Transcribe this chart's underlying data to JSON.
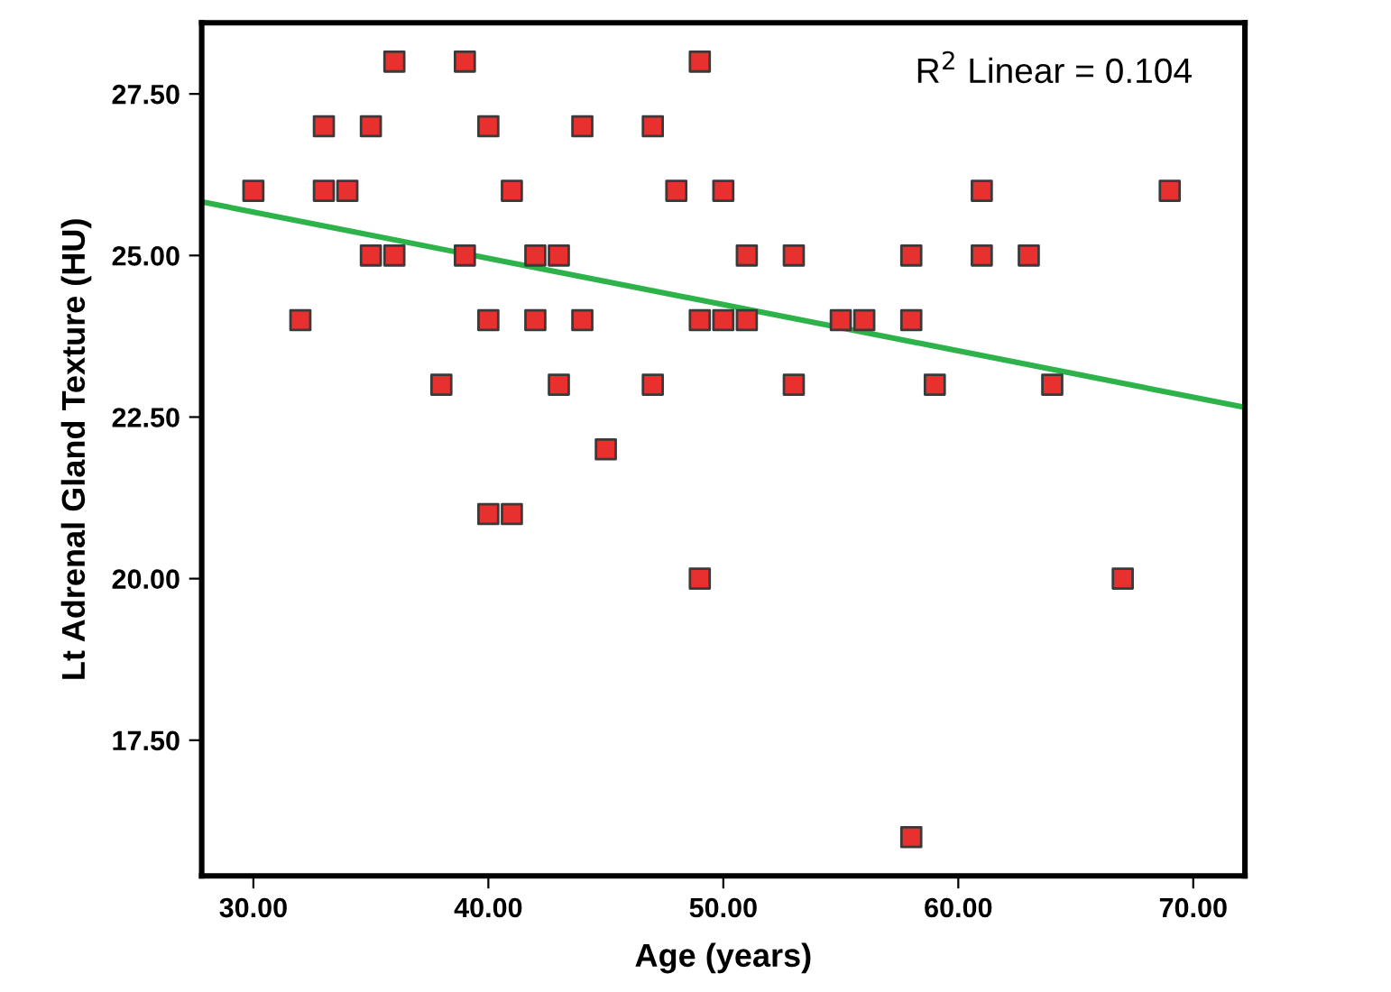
{
  "chart_data": {
    "type": "scatter",
    "xlabel": "Age (years)",
    "ylabel": "Lt Adrenal Gland Texture (HU)",
    "annotations": [
      "R$^{2}$ Linear = 0.104"
    ],
    "xlim": [
      27.8,
      72.2
    ],
    "xticks": [
      {
        "value": 30,
        "label": "30.00"
      },
      {
        "value": 40,
        "label": "40.00"
      },
      {
        "value": 50,
        "label": "50.00"
      },
      {
        "value": 60,
        "label": "60.00"
      },
      {
        "value": 70,
        "label": "70.00"
      }
    ],
    "ylim": [
      15.4,
      28.6
    ],
    "yticks": [
      {
        "value": 17.5,
        "label": "17.50"
      },
      {
        "value": 20,
        "label": "20.00"
      },
      {
        "value": 22.5,
        "label": "22.50"
      },
      {
        "value": 25,
        "label": "25.00"
      },
      {
        "value": 27.5,
        "label": "27.50"
      }
    ],
    "grid": false,
    "legend": false,
    "marker": "square",
    "series": [
      {
        "color": "#e8302f",
        "x": [
          30,
          32,
          33,
          33,
          34,
          35,
          35,
          36,
          36,
          38,
          39,
          39,
          40,
          40,
          40,
          41,
          41,
          42,
          42,
          43,
          43,
          44,
          44,
          45,
          47,
          47,
          48,
          49,
          49,
          49,
          50,
          50,
          51,
          51,
          53,
          53,
          55,
          56,
          58,
          58,
          58,
          59,
          61,
          61,
          63,
          64,
          67,
          69
        ],
        "values": [
          26,
          24,
          27,
          26,
          26,
          27,
          25,
          28,
          25,
          23,
          28,
          25,
          27,
          24,
          21,
          21,
          26,
          25,
          24,
          25,
          23,
          27,
          24,
          22,
          27,
          23,
          26,
          28,
          24,
          20,
          26,
          24,
          25,
          24,
          25,
          23,
          24,
          24,
          25,
          24,
          16,
          23,
          26,
          25,
          25,
          23,
          20,
          26
        ]
      },
      {
        "type": "line",
        "color": "#2db34a",
        "marker": "none",
        "line_style": "solid",
        "x": [
          27.8,
          72.2
        ],
        "values": [
          25.83,
          22.65
        ]
      }
    ]
  }
}
